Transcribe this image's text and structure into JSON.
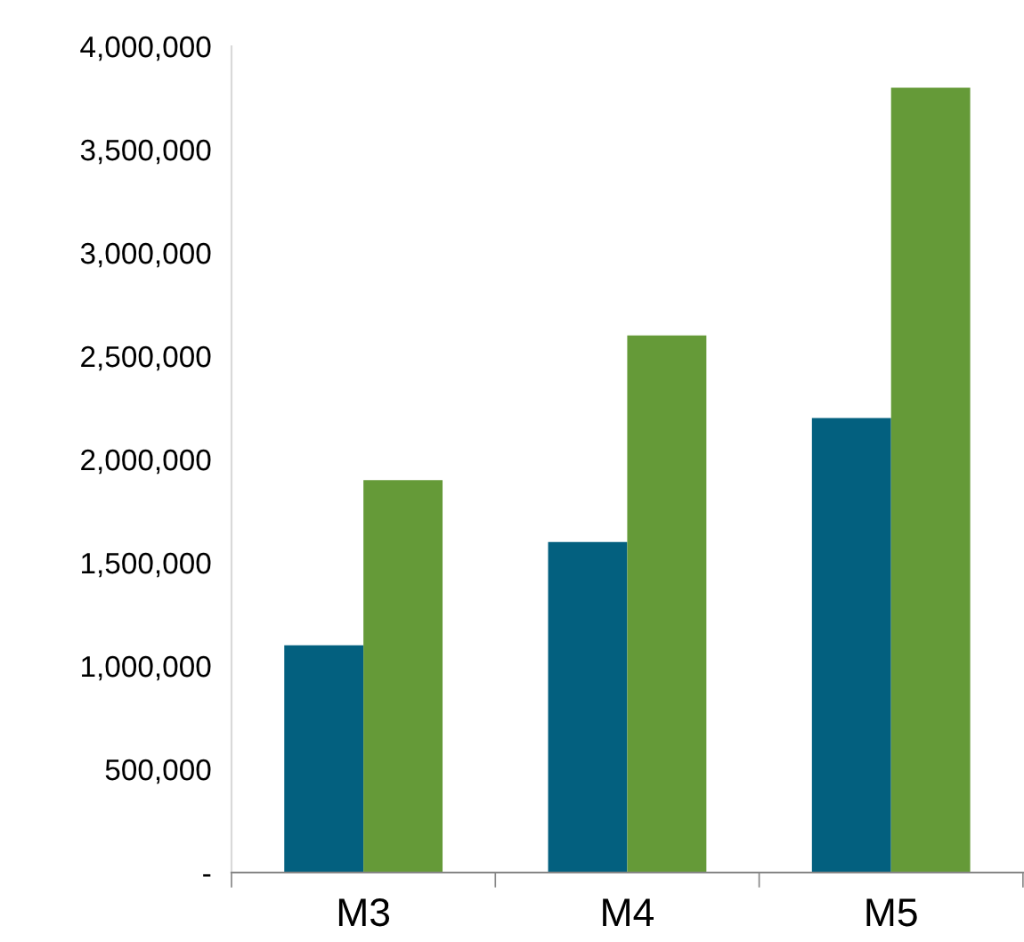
{
  "chart_data": {
    "type": "bar",
    "categories": [
      "M3",
      "M4",
      "M5"
    ],
    "series": [
      {
        "color": "#03607f",
        "values": [
          1100000,
          1600000,
          2200000
        ]
      },
      {
        "color": "#659a38",
        "values": [
          1900000,
          2600000,
          3800000
        ]
      }
    ],
    "ylim": [
      0,
      4000000
    ],
    "yticks": [
      {
        "value": 0,
        "label": "-"
      },
      {
        "value": 500000,
        "label": "500,000"
      },
      {
        "value": 1000000,
        "label": "1,000,000"
      },
      {
        "value": 1500000,
        "label": "1,500,000"
      },
      {
        "value": 2000000,
        "label": "2,000,000"
      },
      {
        "value": 2500000,
        "label": "2,500,000"
      },
      {
        "value": 3000000,
        "label": "3,000,000"
      },
      {
        "value": 3500000,
        "label": "3,500,000"
      },
      {
        "value": 4000000,
        "label": "4,000,000"
      }
    ],
    "grid": false
  }
}
